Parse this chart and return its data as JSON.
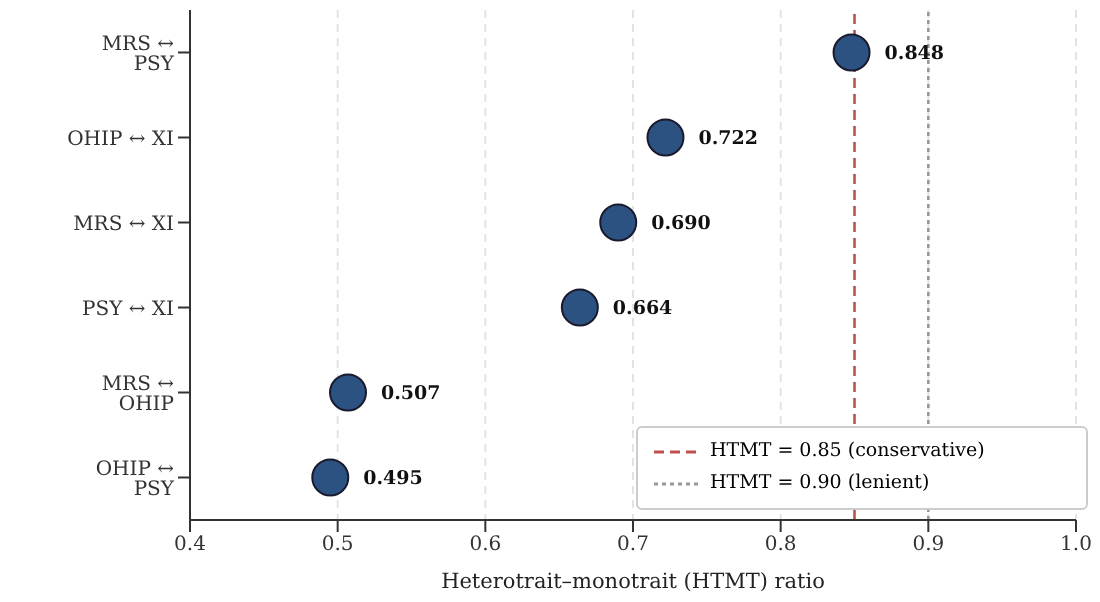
{
  "chart_data": {
    "type": "scatter",
    "orientation": "horizontal",
    "xlabel": "Heterotrait–monotrait (HTMT) ratio",
    "categories": [
      "MRS ↔ PSY",
      "OHIP ↔ XI",
      "MRS ↔ XI",
      "PSY ↔ XI",
      "MRS ↔ OHIP",
      "OHIP ↔ PSY"
    ],
    "values": [
      0.848,
      0.722,
      0.69,
      0.664,
      0.507,
      0.495
    ],
    "value_labels": [
      "0.848",
      "0.722",
      "0.690",
      "0.664",
      "0.507",
      "0.495"
    ],
    "color": "#2c5282",
    "marker": "circle",
    "xlim": [
      0.4,
      1.0
    ],
    "xticks": [
      0.4,
      0.5,
      0.6,
      0.7,
      0.8,
      0.9,
      {
        "value": 1,
        "label": "1.0"
      }
    ],
    "grid": "x",
    "legend": "bottom right",
    "ref_lines": [
      {
        "axis": "x",
        "value": 0.85,
        "label": "HTMT = 0.85 (conservative)",
        "color": "#c0504d",
        "line_style": "dashed"
      },
      {
        "axis": "x",
        "value": 0.9,
        "label": "HTMT = 0.90 (lenient)",
        "color": "#999999",
        "line_style": "dotted"
      }
    ]
  }
}
